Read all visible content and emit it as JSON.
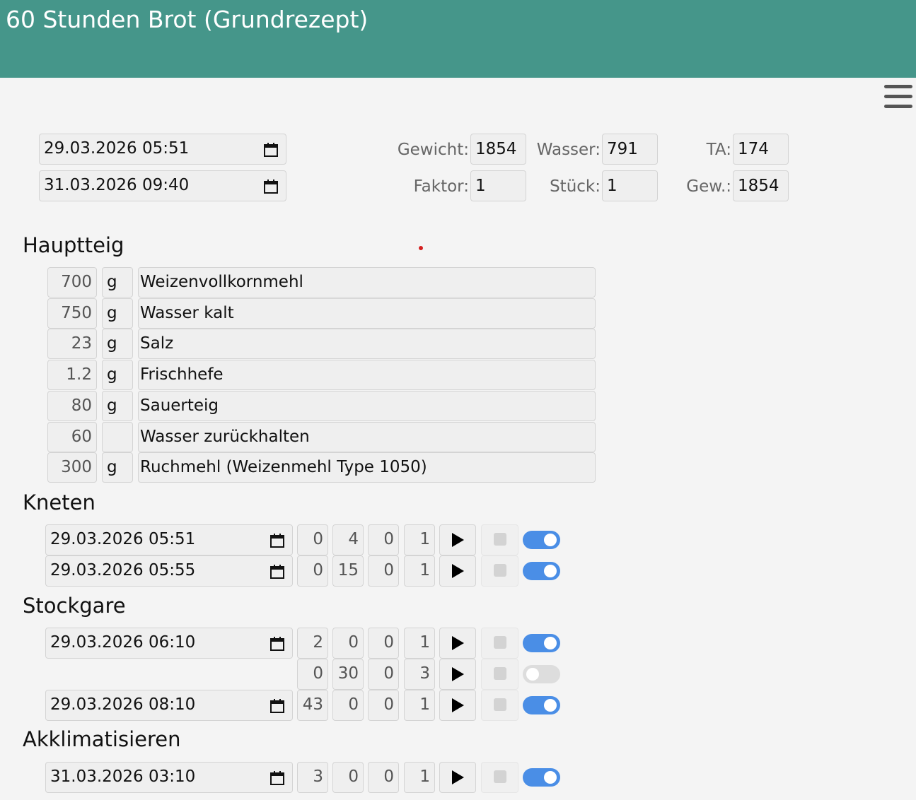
{
  "header": {
    "title": "60 Stunden Brot (Grundrezept)"
  },
  "dates": {
    "start": "29.03.2026  05:51",
    "end": "31.03.2026  09:40"
  },
  "stats": [
    {
      "label": "Gewicht:",
      "value": "1854"
    },
    {
      "label": "Wasser:",
      "value": "791"
    },
    {
      "label": "TA:",
      "value": "174"
    },
    {
      "label": "Faktor:",
      "value": "1"
    },
    {
      "label": "Stück:",
      "value": "1"
    },
    {
      "label": "Gew.:",
      "value": "1854"
    }
  ],
  "hauptteig": {
    "title": "Hauptteig",
    "ingredients": [
      {
        "amount": "700",
        "unit": "g",
        "name": "Weizenvollkornmehl"
      },
      {
        "amount": "750",
        "unit": "g",
        "name": "Wasser kalt"
      },
      {
        "amount": "23",
        "unit": "g",
        "name": "Salz"
      },
      {
        "amount": "1.2",
        "unit": "g",
        "name": "Frischhefe"
      },
      {
        "amount": "80",
        "unit": "g",
        "name": "Sauerteig"
      },
      {
        "amount": "60",
        "unit": "",
        "name": "Wasser zurückhalten"
      },
      {
        "amount": "300",
        "unit": "g",
        "name": "Ruchmehl (Weizenmehl Type 1050)"
      }
    ]
  },
  "steps": [
    {
      "title": "Kneten",
      "rows": [
        {
          "date": "29.03.2026  05:51",
          "values": [
            "0",
            "4",
            "0",
            "1"
          ],
          "enabled": true
        },
        {
          "date": "29.03.2026  05:55",
          "values": [
            "0",
            "15",
            "0",
            "1"
          ],
          "enabled": true
        }
      ]
    },
    {
      "title": "Stockgare",
      "rows": [
        {
          "date": "29.03.2026  06:10",
          "values": [
            "2",
            "0",
            "0",
            "1"
          ],
          "enabled": true
        },
        {
          "date": null,
          "values": [
            "0",
            "30",
            "0",
            "3"
          ],
          "enabled": false
        },
        {
          "date": "29.03.2026  08:10",
          "values": [
            "43",
            "0",
            "0",
            "1"
          ],
          "enabled": true
        }
      ]
    },
    {
      "title": "Akklimatisieren",
      "rows": [
        {
          "date": "31.03.2026  03:10",
          "values": [
            "3",
            "0",
            "0",
            "1"
          ],
          "enabled": true
        }
      ]
    }
  ],
  "colors": {
    "header": "#45968a",
    "toggle_on": "#4a8ee6"
  }
}
